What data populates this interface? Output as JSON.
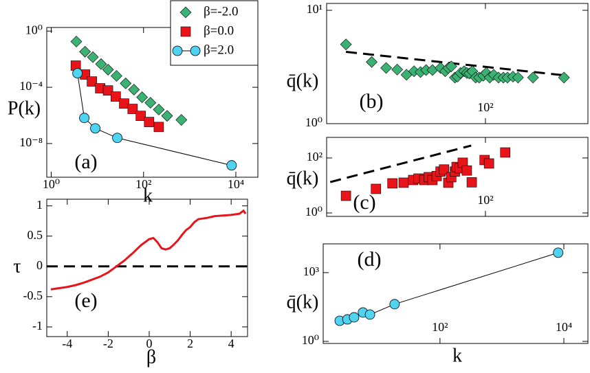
{
  "chart_data": [
    {
      "type": "scatter",
      "panel": "(a)",
      "xlabel": "k",
      "ylabel": "P(k)",
      "xscale": "log",
      "yscale": "log",
      "xlim": [
        0.8,
        30000
      ],
      "ylim": [
        4e-11,
        1.8
      ],
      "xticks": [
        {
          "value": 1,
          "label": "10⁰"
        },
        {
          "value": 100,
          "label": "10²"
        },
        {
          "value": 10000,
          "label": "10⁴"
        }
      ],
      "yticks": [
        {
          "value": 1,
          "label": "10⁰"
        },
        {
          "value": 0.0001,
          "label": "10⁻⁴"
        },
        {
          "value": 1e-08,
          "label": "10⁻⁸"
        }
      ],
      "legend": "top-right",
      "series": [
        {
          "name": "β=-2.0",
          "color": "#3bb273",
          "marker": "diamond",
          "line": false,
          "x": [
            3.5,
            5.4,
            8,
            12,
            17,
            26,
            41,
            62,
            93,
            141,
            214,
            324,
            661
          ],
          "values": [
            0.18,
            0.034,
            0.014,
            0.0045,
            0.0018,
            0.00065,
            0.00019,
            6.8e-05,
            1.95e-05,
            7.9e-06,
            2.6e-06,
            9.3e-07,
            4.8e-07
          ]
        },
        {
          "name": "β=0.0",
          "color": "#e8141a",
          "marker": "square",
          "line": false,
          "x": [
            3.4,
            5.4,
            7.6,
            11.5,
            17,
            25,
            38,
            58,
            87,
            132,
            214
          ],
          "values": [
            0.0035,
            0.00081,
            0.00026,
            8.5e-05,
            6e-05,
            2.2e-05,
            7e-06,
            2.9e-06,
            9.3e-07,
            3.4e-07,
            1.5e-07
          ]
        },
        {
          "name": "β=2.0",
          "color": "#4fd3f0",
          "marker": "circle",
          "line": true,
          "x": [
            3.7,
            5.2,
            9,
            27,
            8100
          ],
          "values": [
            0.001,
            6.6e-07,
            1.2e-07,
            2.5e-08,
            2.8e-10
          ]
        }
      ]
    },
    {
      "type": "scatter",
      "panel": "(b)",
      "ylabel": "q̄(k)",
      "xscale": "log",
      "yscale": "log",
      "xlim": [
        2.2,
        1175
      ],
      "ylim": [
        1,
        11.5
      ],
      "xticks": [
        {
          "value": 100,
          "label": "10²"
        }
      ],
      "yticks": [
        {
          "value": 1,
          "label": "10⁰"
        },
        {
          "value": 10,
          "label": "10¹"
        }
      ],
      "fit": {
        "x": [
          3.5,
          720
        ],
        "y": [
          4.3,
          2.65
        ]
      },
      "series": [
        {
          "color": "#3bb273",
          "marker": "diamond",
          "line": false,
          "x": [
            3.5,
            6.5,
            9.2,
            12,
            15,
            18,
            21,
            24,
            28,
            34,
            38,
            41,
            44,
            48,
            51,
            55,
            60,
            64,
            68,
            73,
            79,
            86,
            95,
            102,
            111,
            122,
            137,
            154,
            170,
            194,
            219,
            314,
            661
          ],
          "values": [
            5.0,
            3.5,
            3.1,
            3.0,
            2.7,
            2.9,
            2.85,
            2.97,
            2.97,
            3.1,
            2.9,
            3.1,
            3.2,
            2.55,
            2.6,
            2.8,
            2.9,
            2.8,
            2.77,
            2.9,
            2.55,
            2.55,
            2.65,
            2.8,
            2.55,
            2.7,
            2.55,
            2.55,
            2.55,
            2.6,
            2.55,
            2.55,
            2.55
          ]
        }
      ]
    },
    {
      "type": "scatter",
      "panel": "(c)",
      "ylabel": "q̄(k)",
      "xscale": "log",
      "yscale": "log",
      "xlim": [
        2.2,
        1175
      ],
      "ylim": [
        0.75,
        560
      ],
      "xticks": [
        {
          "value": 100,
          "label": "10²"
        }
      ],
      "yticks": [
        {
          "value": 1,
          "label": "10⁰"
        },
        {
          "value": 100,
          "label": "10²"
        }
      ],
      "fit": {
        "x": [
          2.4,
          71
        ],
        "y": [
          13.3,
          282
        ]
      },
      "series": [
        {
          "color": "#e8141a",
          "marker": "square",
          "line": false,
          "x": [
            3.5,
            7.2,
            10.7,
            14,
            17.6,
            20,
            23,
            25.6,
            28,
            31,
            34,
            37,
            41,
            44,
            48,
            50,
            54,
            58,
            64,
            72,
            98,
            109,
            161
          ],
          "values": [
            4.2,
            7.5,
            11.9,
            12.6,
            15.8,
            17.8,
            15.8,
            20,
            15.8,
            22,
            32,
            38,
            12.6,
            20,
            32,
            47,
            42,
            67,
            35,
            13,
            84,
            63,
            158
          ]
        }
      ]
    },
    {
      "type": "scatter",
      "panel": "(d)",
      "xlabel": "k",
      "ylabel": "q̄(k)",
      "xscale": "log",
      "yscale": "log",
      "xlim": [
        1.3,
        24500
      ],
      "ylim": [
        0.81,
        18000
      ],
      "xticks": [
        {
          "value": 100,
          "label": "10²"
        },
        {
          "value": 10000,
          "label": "10⁴"
        }
      ],
      "yticks": [
        {
          "value": 1,
          "label": "10⁰"
        },
        {
          "value": 1000,
          "label": "10³"
        }
      ],
      "series": [
        {
          "color": "#4fd3f0",
          "marker": "circle",
          "line": true,
          "x": [
            2.4,
            3.2,
            4.1,
            5.7,
            7.4,
            18.5,
            8100
          ],
          "values": [
            7.9,
            9.1,
            11.2,
            18.2,
            14.8,
            42,
            7400
          ]
        }
      ]
    },
    {
      "type": "line",
      "panel": "(e)",
      "xlabel": "β",
      "ylabel": "τ",
      "xlim": [
        -5,
        4.8
      ],
      "ylim": [
        -1.16,
        1.11
      ],
      "xticks": [
        -4,
        -2,
        0,
        2,
        4
      ],
      "yticks": [
        -1,
        -0.5,
        0,
        0.5,
        1
      ],
      "hline": 0,
      "series": [
        {
          "color": "#e8141a",
          "x": [
            -4.8,
            -4.4,
            -4,
            -3.6,
            -3.2,
            -2.8,
            -2.4,
            -2,
            -1.6,
            -1.2,
            -0.8,
            -0.4,
            0,
            0.2,
            0.4,
            0.6,
            0.8,
            1.0,
            1.2,
            1.4,
            1.6,
            1.8,
            2.0,
            2.2,
            2.4,
            2.8,
            3.2,
            3.6,
            4.0,
            4.4,
            4.6,
            4.7
          ],
          "values": [
            -0.38,
            -0.36,
            -0.34,
            -0.31,
            -0.27,
            -0.22,
            -0.17,
            -0.1,
            0.0,
            0.1,
            0.22,
            0.35,
            0.45,
            0.47,
            0.4,
            0.3,
            0.28,
            0.3,
            0.36,
            0.43,
            0.52,
            0.6,
            0.65,
            0.73,
            0.78,
            0.8,
            0.83,
            0.84,
            0.85,
            0.87,
            0.92,
            0.87
          ]
        }
      ]
    }
  ]
}
